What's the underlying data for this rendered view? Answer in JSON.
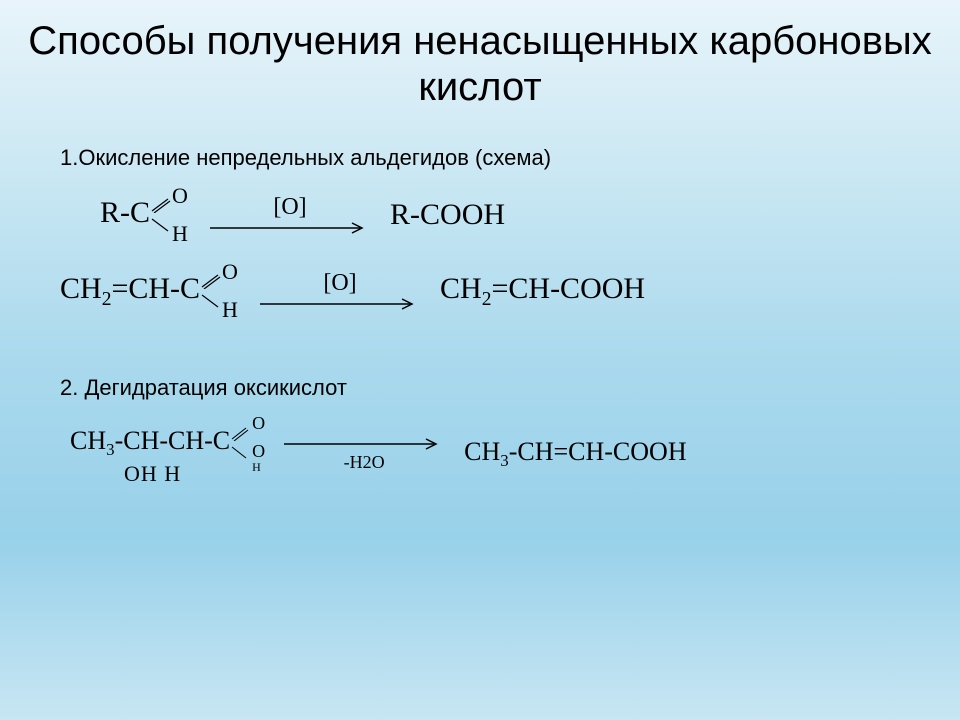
{
  "background": {
    "gradient_stops": [
      "#e8f4fa",
      "#c9e7f3",
      "#aad9ed",
      "#98d1ea",
      "#c8e6f3"
    ]
  },
  "title": "Способы получения ненасыщенных карбоновых кислот",
  "section1": {
    "heading": "1.Окисление непредельных альдегидов (схема)",
    "reaction1": {
      "lhs_prefix": "R-C",
      "carbonyl_top": "O",
      "carbonyl_bottom": "H",
      "arrow_above": "[O]",
      "rhs": "R-COOH"
    },
    "reaction2": {
      "lhs_prefix_html": "CH<span class=\"sub\">2</span>=CH-C",
      "carbonyl_top": "O",
      "carbonyl_bottom": "H",
      "arrow_above": "[O]",
      "rhs_html": "CH<span class=\"sub\">2</span>=CH-COOH"
    }
  },
  "section2": {
    "heading": "2. Дегидратация оксикислот",
    "reaction": {
      "lhs_prefix_html": "CH<span class=\"sub\">3</span>-CH-CH-C",
      "carbonyl_top": "O",
      "carbonyl_bottom_html": "O<br><span style=\"font-size:12px\">H</span>",
      "under_labels": "OH  H",
      "arrow_below": "-H2O",
      "rhs_html": "CH<span class=\"sub\">3</span>-CH=CH-COOH"
    }
  },
  "style": {
    "title_fontsize": 40,
    "heading_fontsize": 22,
    "formula_fontsize": 30,
    "formula_font": "Times New Roman",
    "text_color": "#000000",
    "arrow_length": 160
  }
}
